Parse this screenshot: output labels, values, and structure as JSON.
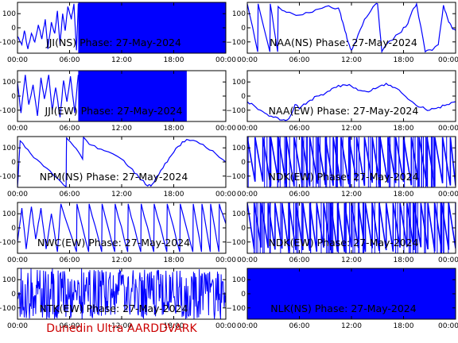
{
  "footer": {
    "text": "Dunedin Ultra AARDDVARK",
    "color": "#cc0000"
  },
  "style": {
    "trace_color": "#0000ff",
    "axis_color": "#000000"
  },
  "chart_data": [
    {
      "type": "line",
      "title": "JJI(NS) Phase: 27-May-2024",
      "x": [
        "00:00",
        "06:00",
        "12:00",
        "18:00",
        "00:00"
      ],
      "xlim": [
        0,
        24
      ],
      "ylim": [
        -180,
        180
      ],
      "yticks": [
        100,
        0,
        -100
      ],
      "series": [
        {
          "points": [
            [
              0,
              -60
            ],
            [
              0.5,
              -120
            ],
            [
              0.8,
              -20
            ],
            [
              1.2,
              -150
            ],
            [
              1.6,
              -40
            ],
            [
              2.0,
              -100
            ],
            [
              2.4,
              20
            ],
            [
              2.8,
              -80
            ],
            [
              3.2,
              60
            ],
            [
              3.5,
              -150
            ],
            [
              3.9,
              40
            ],
            [
              4.3,
              -40
            ],
            [
              4.6,
              120
            ],
            [
              4.9,
              -120
            ],
            [
              5.2,
              100
            ],
            [
              5.5,
              -20
            ],
            [
              5.8,
              150
            ],
            [
              6.2,
              60
            ],
            [
              6.5,
              170
            ],
            [
              6.8,
              -160
            ],
            [
              7.0,
              170
            ]
          ],
          "solid_from": 7.0,
          "solid_to": 24
        }
      ]
    },
    {
      "type": "line",
      "title": "NAA(NS) Phase: 27-May-2024",
      "x": [
        "00:00",
        "06:00",
        "12:00",
        "18:00",
        "00:00"
      ],
      "xlim": [
        0,
        24
      ],
      "ylim": [
        -180,
        180
      ],
      "yticks": [
        100,
        0,
        -100
      ],
      "series": [
        {
          "points": [
            [
              0,
              170
            ],
            [
              1.2,
              -170
            ],
            [
              1.25,
              170
            ],
            [
              2.6,
              -170
            ],
            [
              2.65,
              170
            ],
            [
              3.5,
              -170
            ],
            [
              3.55,
              150
            ],
            [
              4.5,
              110
            ],
            [
              6,
              90
            ],
            [
              7.5,
              110
            ],
            [
              9,
              150
            ],
            [
              10.5,
              140
            ],
            [
              11,
              40
            ],
            [
              11.5,
              -80
            ],
            [
              12,
              -160
            ],
            [
              12.5,
              -100
            ],
            [
              13.5,
              60
            ],
            [
              14.5,
              150
            ],
            [
              15,
              170
            ],
            [
              15.5,
              -170
            ],
            [
              16,
              -120
            ],
            [
              17.5,
              -40
            ],
            [
              18.5,
              30
            ],
            [
              19,
              120
            ],
            [
              19.5,
              170
            ],
            [
              20.5,
              -170
            ],
            [
              21.3,
              -160
            ],
            [
              22,
              -120
            ],
            [
              22.6,
              160
            ],
            [
              23.2,
              40
            ],
            [
              23.7,
              -10
            ],
            [
              24,
              -20
            ]
          ]
        }
      ]
    },
    {
      "type": "line",
      "title": "JJI(EW) Phase: 27-May-2024",
      "x": [
        "00:00",
        "06:00",
        "12:00",
        "18:00",
        "00:00"
      ],
      "xlim": [
        0,
        24
      ],
      "ylim": [
        -180,
        180
      ],
      "yticks": [
        100,
        0,
        -100
      ],
      "series": [
        {
          "points": [
            [
              0,
              100
            ],
            [
              0.4,
              -120
            ],
            [
              0.9,
              150
            ],
            [
              1.3,
              -60
            ],
            [
              1.8,
              80
            ],
            [
              2.3,
              -140
            ],
            [
              2.7,
              130
            ],
            [
              3.1,
              -20
            ],
            [
              3.6,
              150
            ],
            [
              4.0,
              -100
            ],
            [
              4.4,
              60
            ],
            [
              4.9,
              -150
            ],
            [
              5.3,
              110
            ],
            [
              5.7,
              -40
            ],
            [
              6.1,
              140
            ],
            [
              6.6,
              -120
            ],
            [
              7.0,
              150
            ]
          ],
          "solid_from": 7.0,
          "solid_to": 19.5
        }
      ]
    },
    {
      "type": "line",
      "title": "NAA(EW) Phase: 27-May-2024",
      "x": [
        "00:00",
        "06:00",
        "12:00",
        "18:00",
        "00:00"
      ],
      "xlim": [
        0,
        24
      ],
      "ylim": [
        -180,
        180
      ],
      "yticks": [
        100,
        0,
        -100
      ],
      "series": [
        {
          "points": [
            [
              0,
              -40
            ],
            [
              1,
              -80
            ],
            [
              2,
              -120
            ],
            [
              3,
              -150
            ],
            [
              4,
              -170
            ],
            [
              4.8,
              -160
            ],
            [
              5.5,
              -60
            ],
            [
              6,
              -90
            ],
            [
              7,
              -40
            ],
            [
              8,
              0
            ],
            [
              9,
              20
            ],
            [
              10,
              60
            ],
            [
              11,
              80
            ],
            [
              12,
              70
            ],
            [
              13,
              40
            ],
            [
              14,
              30
            ],
            [
              15,
              60
            ],
            [
              16,
              90
            ],
            [
              17,
              60
            ],
            [
              18,
              10
            ],
            [
              19,
              -40
            ],
            [
              20,
              -80
            ],
            [
              21,
              -100
            ],
            [
              22,
              -80
            ],
            [
              23,
              -60
            ],
            [
              24,
              -40
            ]
          ]
        }
      ]
    },
    {
      "type": "line",
      "title": "NPM(NS) Phase: 27-May-2024",
      "x": [
        "00:00",
        "06:00",
        "12:00",
        "18:00",
        "00:00"
      ],
      "xlim": [
        0,
        24
      ],
      "ylim": [
        -180,
        180
      ],
      "yticks": [
        100,
        0,
        -100
      ],
      "series": [
        {
          "points": [
            [
              0,
              -180
            ],
            [
              0.3,
              150
            ],
            [
              1.5,
              60
            ],
            [
              3,
              -30
            ],
            [
              4.5,
              -110
            ],
            [
              5.6,
              -175
            ],
            [
              5.65,
              170
            ],
            [
              6.5,
              110
            ],
            [
              7.5,
              20
            ],
            [
              7.6,
              175
            ],
            [
              8.5,
              120
            ],
            [
              10,
              80
            ],
            [
              12,
              20
            ],
            [
              13,
              -40
            ],
            [
              14,
              -110
            ],
            [
              15,
              -170
            ],
            [
              15.5,
              -160
            ],
            [
              16.5,
              -60
            ],
            [
              17.5,
              30
            ],
            [
              18.5,
              110
            ],
            [
              19.5,
              160
            ],
            [
              21,
              130
            ],
            [
              22.5,
              80
            ],
            [
              24,
              0
            ]
          ]
        }
      ]
    },
    {
      "type": "line",
      "title": "NDK(EW) Phase: 27-May-2024",
      "x": [
        "00:00",
        "06:00",
        "12:00",
        "18:00",
        "00:00"
      ],
      "xlim": [
        0,
        24
      ],
      "ylim": [
        -180,
        180
      ],
      "yticks": [
        100,
        0,
        -100
      ],
      "series": [
        {
          "sawtooth_period_hours": 0.9,
          "from": 0,
          "to": 24
        }
      ]
    },
    {
      "type": "line",
      "title": "NWC(EW) Phase: 27-May-2024",
      "x": [
        "00:00",
        "06:00",
        "12:00",
        "18:00",
        "00:00"
      ],
      "xlim": [
        0,
        24
      ],
      "ylim": [
        -180,
        180
      ],
      "yticks": [
        100,
        0,
        -100
      ],
      "series": [
        {
          "points": [
            [
              0,
              -100
            ],
            [
              0.5,
              140
            ],
            [
              1,
              -150
            ],
            [
              1.6,
              150
            ],
            [
              2.1,
              -80
            ],
            [
              2.7,
              140
            ],
            [
              3.3,
              -150
            ],
            [
              3.9,
              100
            ],
            [
              4.6,
              -170
            ],
            [
              5.0,
              170
            ],
            [
              6.8,
              -170
            ],
            [
              6.85,
              170
            ],
            [
              8.2,
              -170
            ],
            [
              8.25,
              170
            ],
            [
              9.7,
              -170
            ],
            [
              9.75,
              170
            ],
            [
              11.2,
              -170
            ],
            [
              11.25,
              170
            ],
            [
              12.7,
              -170
            ],
            [
              12.75,
              170
            ],
            [
              14.2,
              -170
            ],
            [
              14.25,
              170
            ],
            [
              15.7,
              -170
            ],
            [
              15.75,
              170
            ],
            [
              17.2,
              -170
            ],
            [
              17.25,
              170
            ],
            [
              18.7,
              -170
            ],
            [
              18.75,
              170
            ],
            [
              20.2,
              -170
            ],
            [
              20.25,
              170
            ],
            [
              21.2,
              -170
            ],
            [
              21.25,
              170
            ],
            [
              22.2,
              -170
            ],
            [
              22.25,
              170
            ],
            [
              23.2,
              -170
            ],
            [
              23.25,
              170
            ],
            [
              24,
              30
            ]
          ]
        }
      ]
    },
    {
      "type": "line",
      "title": "NDK(EW) Phase: 27-May-2024",
      "x": [
        "00:00",
        "06:00",
        "12:00",
        "18:00",
        "00:00"
      ],
      "xlim": [
        0,
        24
      ],
      "ylim": [
        -180,
        180
      ],
      "yticks": [
        100,
        0,
        -100
      ],
      "series": [
        {
          "sawtooth_period_hours": 0.8,
          "from": 0,
          "to": 24
        }
      ]
    },
    {
      "type": "line",
      "title": "NTK(EW) Phase: 27-May-2024",
      "x": [
        "00:00",
        "06:00",
        "12:00",
        "18:00",
        "00:00"
      ],
      "xlim": [
        0,
        24
      ],
      "ylim": [
        -180,
        180
      ],
      "yticks": [
        100,
        0,
        -100
      ],
      "series": [
        {
          "noise_from": 0,
          "noise_to": 24
        }
      ]
    },
    {
      "type": "line",
      "title": "NLK(NS) Phase: 27-May-2024",
      "x": [
        "00:00",
        "06:00",
        "12:00",
        "18:00",
        "00:00"
      ],
      "xlim": [
        0,
        24
      ],
      "ylim": [
        -180,
        180
      ],
      "yticks": [
        100,
        0,
        -100
      ],
      "series": [
        {
          "solid_from": 0,
          "solid_to": 24
        }
      ]
    }
  ]
}
